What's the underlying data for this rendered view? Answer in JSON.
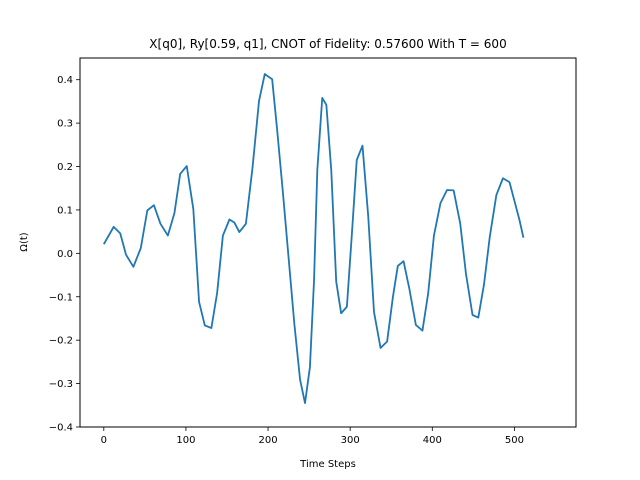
{
  "chart_data": {
    "type": "line",
    "title": "X[q0], Ry[0.59, q1], CNOT of Fidelity: 0.57600 With T = 600",
    "xlabel": "Time Steps",
    "ylabel": "Ω(t)",
    "xlim": [
      -29,
      575
    ],
    "ylim": [
      -0.4,
      0.45
    ],
    "xticks": [
      0,
      100,
      200,
      300,
      400,
      500
    ],
    "xtick_labels": [
      "0",
      "100",
      "200",
      "300",
      "400",
      "500"
    ],
    "yticks": [
      -0.4,
      -0.3,
      -0.2,
      -0.1,
      0.0,
      0.1,
      0.2,
      0.3,
      0.4
    ],
    "ytick_labels": [
      "−0.4",
      "−0.3",
      "−0.2",
      "−0.1",
      "0.0",
      "0.1",
      "0.2",
      "0.3",
      "0.4"
    ],
    "grid": false,
    "line_color": "#1f77b4",
    "series": [
      {
        "x": [
          0,
          12,
          20,
          27,
          36,
          45,
          53,
          61,
          69,
          78,
          86,
          93,
          101,
          109,
          116,
          123,
          131,
          138,
          145,
          153,
          159,
          165,
          173,
          181,
          189,
          196,
          205,
          211,
          218,
          225,
          232,
          239,
          245,
          251,
          256,
          260,
          266,
          271,
          277,
          283,
          289,
          296,
          302,
          308,
          315,
          322,
          329,
          337,
          345,
          352,
          358,
          365,
          372,
          380,
          388,
          395,
          402,
          410,
          418,
          426,
          434,
          441,
          449,
          456,
          463,
          470,
          478,
          486,
          494,
          500,
          506,
          511
        ],
        "y": [
          0.021,
          0.061,
          0.046,
          -0.003,
          -0.031,
          0.012,
          0.099,
          0.111,
          0.068,
          0.041,
          0.093,
          0.183,
          0.201,
          0.102,
          -0.112,
          -0.166,
          -0.172,
          -0.091,
          0.041,
          0.078,
          0.071,
          0.049,
          0.068,
          0.196,
          0.351,
          0.413,
          0.401,
          0.286,
          0.142,
          -0.01,
          -0.162,
          -0.291,
          -0.345,
          -0.262,
          -0.062,
          0.192,
          0.358,
          0.342,
          0.191,
          -0.065,
          -0.138,
          -0.123,
          0.042,
          0.215,
          0.248,
          0.085,
          -0.135,
          -0.218,
          -0.203,
          -0.101,
          -0.029,
          -0.018,
          -0.081,
          -0.165,
          -0.178,
          -0.092,
          0.041,
          0.116,
          0.146,
          0.145,
          0.069,
          -0.047,
          -0.142,
          -0.148,
          -0.071,
          0.038,
          0.134,
          0.173,
          0.164,
          0.121,
          0.078,
          0.036
        ]
      }
    ]
  }
}
